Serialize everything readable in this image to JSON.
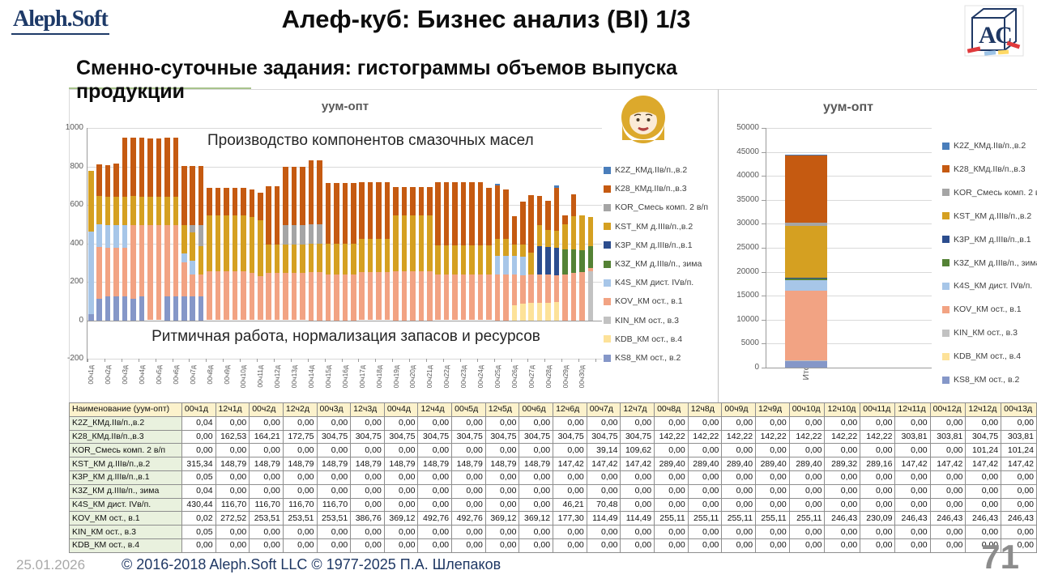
{
  "header": {
    "logo_text": "Aleph.Soft",
    "title": "Алеф-куб: Бизнес анализ (BI) 1/3",
    "cube_letters": "АС"
  },
  "subtitle": "Сменно-суточные задания: гистограммы объемов выпуска продукции",
  "footer": {
    "date": "25.01.2026",
    "copyright": "© 2016-2018 Aleph.Soft LLC © 1977-2025 П.А. Шлепаков",
    "page": "71"
  },
  "series_meta": [
    {
      "id": "K2Z",
      "label": "K2Z_КМд.IIв/п.,в.2",
      "color": "#4A7EBB"
    },
    {
      "id": "K28",
      "label": "K28_КМд.IIв/п.,в.3",
      "color": "#C55A11"
    },
    {
      "id": "KOR",
      "label": "KOR_Смесь комп. 2 в/п",
      "color": "#A5A5A5"
    },
    {
      "id": "KST",
      "label": "KST_КМ д.IIIв/п.,в.2",
      "color": "#D5A021"
    },
    {
      "id": "K3P",
      "label": "K3P_КМ д.IIIв/п.,в.1",
      "color": "#2C4D8E"
    },
    {
      "id": "K3Z",
      "label": "K3Z_КМ д.IIIв/п., зима",
      "color": "#548235"
    },
    {
      "id": "K4S",
      "label": "K4S_КМ дист. IVв/п.",
      "color": "#A7C6E8"
    },
    {
      "id": "KOV",
      "label": "KOV_КМ ост., в.1",
      "color": "#F2A383"
    },
    {
      "id": "KIN",
      "label": "KIN_КМ ост., в.3",
      "color": "#C2C2C2"
    },
    {
      "id": "KDB",
      "label": "KDB_КМ ост., в.4",
      "color": "#FDE299"
    },
    {
      "id": "KS8",
      "label": "KS8_КМ ост., в.2",
      "color": "#8597C8"
    }
  ],
  "chart_data": [
    {
      "type": "bar",
      "stacked": true,
      "title": "уум-опт",
      "annotation_top": "Производство компонентов смазочных масел",
      "annotation_bottom": "Ритмичная работа, нормализация запасов и ресурсов",
      "ylim": [
        -200,
        1000
      ],
      "ytick_step": 200,
      "grid": true,
      "legend_position": "right",
      "x_labels": [
        "00ч1д",
        "00ч2д",
        "00ч3д",
        "00ч4д",
        "00ч5д",
        "00ч6д",
        "00ч7д",
        "00ч8д",
        "00ч9д",
        "00ч10д",
        "00ч11д",
        "00ч12д",
        "00ч13д",
        "00ч14д",
        "00ч15д",
        "00ч16д",
        "00ч17д",
        "00ч18д",
        "00ч19д",
        "00ч20д",
        "00ч21д",
        "00ч22д",
        "00ч23д",
        "00ч24д",
        "00ч25д",
        "00ч26д",
        "00ч27д",
        "00ч28д",
        "00ч29д",
        "00ч30д"
      ],
      "stack_order": [
        "KS8",
        "KDB",
        "KIN",
        "KOV",
        "K4S",
        "K3Z",
        "K3P",
        "KST",
        "KOR",
        "K28",
        "K2Z"
      ],
      "series": {
        "K2Z": [
          0,
          0,
          0,
          0,
          0,
          0,
          0,
          0,
          0,
          0,
          0,
          0,
          0,
          0,
          0,
          0,
          0,
          0,
          0,
          0,
          0,
          0,
          0,
          0,
          0,
          0,
          0,
          0,
          0,
          0,
          0,
          0,
          0,
          0,
          0,
          0,
          0,
          0,
          0,
          0,
          0,
          0,
          0,
          0,
          0,
          0,
          0,
          0,
          8,
          0,
          0,
          0,
          0,
          0,
          0,
          10,
          0,
          0,
          0,
          0
        ],
        "K28": [
          0,
          162.53,
          164.21,
          172.75,
          304.75,
          304.75,
          304.75,
          304.75,
          304.75,
          304.75,
          304.75,
          304.75,
          304.75,
          304.75,
          142.22,
          142.22,
          142.22,
          142.22,
          142.22,
          142.22,
          142.22,
          303.81,
          303.81,
          304.75,
          304,
          304,
          333,
          333,
          315,
          315,
          315,
          315,
          296,
          296,
          296,
          296,
          148,
          148,
          148,
          148,
          148,
          329,
          329,
          329,
          329,
          329,
          329,
          300,
          275,
          255,
          145,
          220,
          300,
          150,
          150,
          225,
          45,
          115,
          0,
          0
        ],
        "KOR": [
          0,
          0,
          0,
          0,
          0,
          0,
          0,
          0,
          0,
          0,
          0,
          0,
          39.14,
          109.62,
          0,
          0,
          0,
          0,
          0,
          0,
          0,
          0,
          0,
          101.24,
          101,
          101,
          100,
          100,
          0,
          0,
          0,
          0,
          0,
          0,
          0,
          0,
          0,
          0,
          0,
          0,
          0,
          0,
          0,
          0,
          0,
          0,
          0,
          0,
          0,
          0,
          0,
          0,
          0,
          0,
          0,
          0,
          0,
          0,
          0,
          0
        ],
        "KST": [
          315.34,
          148.79,
          148.79,
          148.79,
          148.79,
          148.79,
          148.79,
          148.79,
          148.79,
          148.79,
          148.79,
          147.42,
          147.42,
          147.42,
          289.4,
          289.4,
          289.4,
          289.4,
          289.4,
          289.32,
          289.16,
          147.42,
          147.42,
          147.42,
          147,
          147,
          150,
          150,
          160,
          160,
          160,
          160,
          175,
          175,
          175,
          175,
          289,
          289,
          289,
          289,
          289,
          151,
          151,
          151,
          151,
          151,
          151,
          151,
          90,
          90,
          60,
          65,
          110,
          110,
          90,
          90,
          130,
          170,
          180,
          153
        ],
        "K3P": [
          0,
          0,
          0,
          0,
          0,
          0,
          0,
          0,
          0,
          0,
          0,
          0,
          0,
          0,
          0,
          0,
          0,
          0,
          0,
          0,
          0,
          0,
          0,
          0,
          0,
          0,
          0,
          0,
          0,
          0,
          0,
          0,
          0,
          0,
          0,
          0,
          0,
          0,
          0,
          0,
          0,
          0,
          0,
          0,
          0,
          0,
          0,
          0,
          0,
          0,
          0,
          0,
          0,
          145,
          140,
          140,
          0,
          0,
          0,
          0
        ],
        "K3Z": [
          0,
          0,
          0,
          0,
          0,
          0,
          0,
          0,
          0,
          0,
          0,
          0,
          0,
          0,
          0,
          0,
          0,
          0,
          0,
          0,
          0,
          0,
          0,
          0,
          0,
          0,
          0,
          0,
          0,
          0,
          0,
          0,
          0,
          0,
          0,
          0,
          0,
          0,
          0,
          0,
          0,
          0,
          0,
          0,
          0,
          0,
          0,
          0,
          0,
          0,
          0,
          0,
          0,
          0,
          0,
          0,
          130,
          125,
          115,
          115
        ],
        "K4S": [
          430.44,
          116.7,
          116.7,
          116.7,
          116.7,
          0,
          0,
          0,
          0,
          0,
          0,
          46.21,
          70.48,
          0,
          0,
          0,
          0,
          0,
          0,
          0,
          0,
          0,
          0,
          0,
          0,
          0,
          0,
          0,
          0,
          0,
          0,
          0,
          0,
          0,
          0,
          0,
          0,
          0,
          0,
          0,
          0,
          0,
          0,
          0,
          0,
          0,
          0,
          0,
          95,
          95,
          95,
          95,
          0,
          0,
          0,
          0,
          0,
          0,
          0,
          0
        ],
        "KOV": [
          0.02,
          272.52,
          253.51,
          253.51,
          253.51,
          386.76,
          369.12,
          492.76,
          492.76,
          369.12,
          369.12,
          177.3,
          114.49,
          114.49,
          255.11,
          255.11,
          255.11,
          255.11,
          255.11,
          246.43,
          230.09,
          246.43,
          246.43,
          246.43,
          246,
          246,
          250,
          250,
          240,
          240,
          240,
          240,
          249,
          249,
          249,
          249,
          255,
          255,
          255,
          255,
          255,
          238,
          238,
          238,
          238,
          238,
          238,
          238,
          240,
          240,
          160,
          150,
          150,
          150,
          150,
          140,
          240,
          245,
          250,
          15
        ],
        "KIN": [
          0,
          0,
          0,
          0,
          0,
          0,
          0,
          0,
          0,
          0,
          0,
          0,
          0,
          0,
          0,
          0,
          0,
          0,
          0,
          0,
          0,
          0,
          0,
          0,
          0,
          0,
          0,
          0,
          0,
          0,
          0,
          0,
          0,
          0,
          0,
          0,
          0,
          0,
          0,
          0,
          0,
          0,
          0,
          0,
          0,
          0,
          0,
          0,
          0,
          0,
          0,
          0,
          0,
          0,
          0,
          0,
          0,
          0,
          0,
          255
        ],
        "KDB": [
          0,
          0,
          0,
          0,
          0,
          0,
          0,
          0,
          0,
          0,
          0,
          0,
          0,
          0,
          0,
          0,
          0,
          0,
          0,
          0,
          0,
          0,
          0,
          0,
          0,
          0,
          0,
          0,
          0,
          0,
          0,
          0,
          0,
          0,
          0,
          0,
          0,
          0,
          0,
          0,
          0,
          0,
          0,
          0,
          0,
          0,
          0,
          0,
          0,
          0,
          80,
          85,
          90,
          90,
          90,
          95,
          0,
          0,
          0,
          0
        ],
        "KS8": [
          30,
          110,
          125,
          125,
          125,
          110,
          125,
          0,
          0,
          125,
          125,
          125,
          125,
          125,
          0,
          0,
          0,
          0,
          0,
          0,
          0,
          0,
          0,
          0,
          0,
          0,
          0,
          0,
          0,
          0,
          0,
          0,
          0,
          0,
          0,
          0,
          0,
          0,
          0,
          0,
          0,
          0,
          0,
          0,
          0,
          0,
          0,
          0,
          0,
          0,
          0,
          0,
          0,
          0,
          0,
          0,
          0,
          0,
          0,
          0
        ]
      }
    },
    {
      "type": "bar",
      "stacked": true,
      "title": "уум-опт",
      "categories": [
        "Итого"
      ],
      "ylim": [
        0,
        50000
      ],
      "ytick_step": 5000,
      "grid": true,
      "legend_position": "right",
      "stack_order": [
        "KS8",
        "KDB",
        "KIN",
        "KOV",
        "K4S",
        "K3Z",
        "K3P",
        "KST",
        "KOR",
        "K28",
        "K2Z"
      ],
      "series": {
        "K2Z": 150,
        "K28": 14000,
        "KOR": 700,
        "KST": 10800,
        "K3P": 300,
        "K3Z": 300,
        "K4S": 2100,
        "KOV": 14500,
        "KIN": 100,
        "KDB": 200,
        "KS8": 1300
      }
    }
  ],
  "table": {
    "name_header": "Наименование (уум-опт)",
    "columns": [
      "00ч1д",
      "12ч1д",
      "00ч2д",
      "12ч2д",
      "00ч3д",
      "12ч3д",
      "00ч4д",
      "12ч4д",
      "00ч5д",
      "12ч5д",
      "00ч6д",
      "12ч6д",
      "00ч7д",
      "12ч7д",
      "00ч8д",
      "12ч8д",
      "00ч9д",
      "12ч9д",
      "00ч10д",
      "12ч10д",
      "00ч11д",
      "12ч11д",
      "00ч12д",
      "12ч12д",
      "00ч13д"
    ],
    "rows": [
      {
        "name": "K2Z_КМд.IIв/п.,в.2",
        "values": [
          "0,04",
          "0,00",
          "0,00",
          "0,00",
          "0,00",
          "0,00",
          "0,00",
          "0,00",
          "0,00",
          "0,00",
          "0,00",
          "0,00",
          "0,00",
          "0,00",
          "0,00",
          "0,00",
          "0,00",
          "0,00",
          "0,00",
          "0,00",
          "0,00",
          "0,00",
          "0,00",
          "0,00",
          "0,00"
        ]
      },
      {
        "name": "K28_КМд.IIв/п.,в.3",
        "values": [
          "0,00",
          "162,53",
          "164,21",
          "172,75",
          "304,75",
          "304,75",
          "304,75",
          "304,75",
          "304,75",
          "304,75",
          "304,75",
          "304,75",
          "304,75",
          "304,75",
          "142,22",
          "142,22",
          "142,22",
          "142,22",
          "142,22",
          "142,22",
          "142,22",
          "303,81",
          "303,81",
          "304,75",
          "303,81"
        ]
      },
      {
        "name": "KOR_Смесь комп. 2 в/п",
        "values": [
          "0,00",
          "0,00",
          "0,00",
          "0,00",
          "0,00",
          "0,00",
          "0,00",
          "0,00",
          "0,00",
          "0,00",
          "0,00",
          "0,00",
          "39,14",
          "109,62",
          "0,00",
          "0,00",
          "0,00",
          "0,00",
          "0,00",
          "0,00",
          "0,00",
          "0,00",
          "0,00",
          "101,24",
          "101,24"
        ]
      },
      {
        "name": "KST_КМ д.IIIв/п.,в.2",
        "values": [
          "315,34",
          "148,79",
          "148,79",
          "148,79",
          "148,79",
          "148,79",
          "148,79",
          "148,79",
          "148,79",
          "148,79",
          "148,79",
          "147,42",
          "147,42",
          "147,42",
          "289,40",
          "289,40",
          "289,40",
          "289,40",
          "289,40",
          "289,32",
          "289,16",
          "147,42",
          "147,42",
          "147,42",
          "147,42"
        ]
      },
      {
        "name": "K3P_КМ д.IIIв/п.,в.1",
        "values": [
          "0,05",
          "0,00",
          "0,00",
          "0,00",
          "0,00",
          "0,00",
          "0,00",
          "0,00",
          "0,00",
          "0,00",
          "0,00",
          "0,00",
          "0,00",
          "0,00",
          "0,00",
          "0,00",
          "0,00",
          "0,00",
          "0,00",
          "0,00",
          "0,00",
          "0,00",
          "0,00",
          "0,00",
          "0,00"
        ]
      },
      {
        "name": "K3Z_КМ д.IIIв/п., зима",
        "values": [
          "0,04",
          "0,00",
          "0,00",
          "0,00",
          "0,00",
          "0,00",
          "0,00",
          "0,00",
          "0,00",
          "0,00",
          "0,00",
          "0,00",
          "0,00",
          "0,00",
          "0,00",
          "0,00",
          "0,00",
          "0,00",
          "0,00",
          "0,00",
          "0,00",
          "0,00",
          "0,00",
          "0,00",
          "0,00"
        ]
      },
      {
        "name": "K4S_КМ дист. IVв/п.",
        "values": [
          "430,44",
          "116,70",
          "116,70",
          "116,70",
          "116,70",
          "0,00",
          "0,00",
          "0,00",
          "0,00",
          "0,00",
          "0,00",
          "46,21",
          "70,48",
          "0,00",
          "0,00",
          "0,00",
          "0,00",
          "0,00",
          "0,00",
          "0,00",
          "0,00",
          "0,00",
          "0,00",
          "0,00",
          "0,00"
        ]
      },
      {
        "name": "KOV_КМ ост., в.1",
        "values": [
          "0,02",
          "272,52",
          "253,51",
          "253,51",
          "253,51",
          "386,76",
          "369,12",
          "492,76",
          "492,76",
          "369,12",
          "369,12",
          "177,30",
          "114,49",
          "114,49",
          "255,11",
          "255,11",
          "255,11",
          "255,11",
          "255,11",
          "246,43",
          "230,09",
          "246,43",
          "246,43",
          "246,43",
          "246,43"
        ]
      },
      {
        "name": "KIN_КМ ост., в.3",
        "values": [
          "0,05",
          "0,00",
          "0,00",
          "0,00",
          "0,00",
          "0,00",
          "0,00",
          "0,00",
          "0,00",
          "0,00",
          "0,00",
          "0,00",
          "0,00",
          "0,00",
          "0,00",
          "0,00",
          "0,00",
          "0,00",
          "0,00",
          "0,00",
          "0,00",
          "0,00",
          "0,00",
          "0,00",
          "0,00"
        ]
      },
      {
        "name": "KDB_КМ ост., в.4",
        "values": [
          "0,00",
          "0,00",
          "0,00",
          "0,00",
          "0,00",
          "0,00",
          "0,00",
          "0,00",
          "0,00",
          "0,00",
          "0,00",
          "0,00",
          "0,00",
          "0,00",
          "0,00",
          "0,00",
          "0,00",
          "0,00",
          "0,00",
          "0,00",
          "0,00",
          "0,00",
          "0,00",
          "0,00",
          "0,00"
        ]
      }
    ]
  }
}
